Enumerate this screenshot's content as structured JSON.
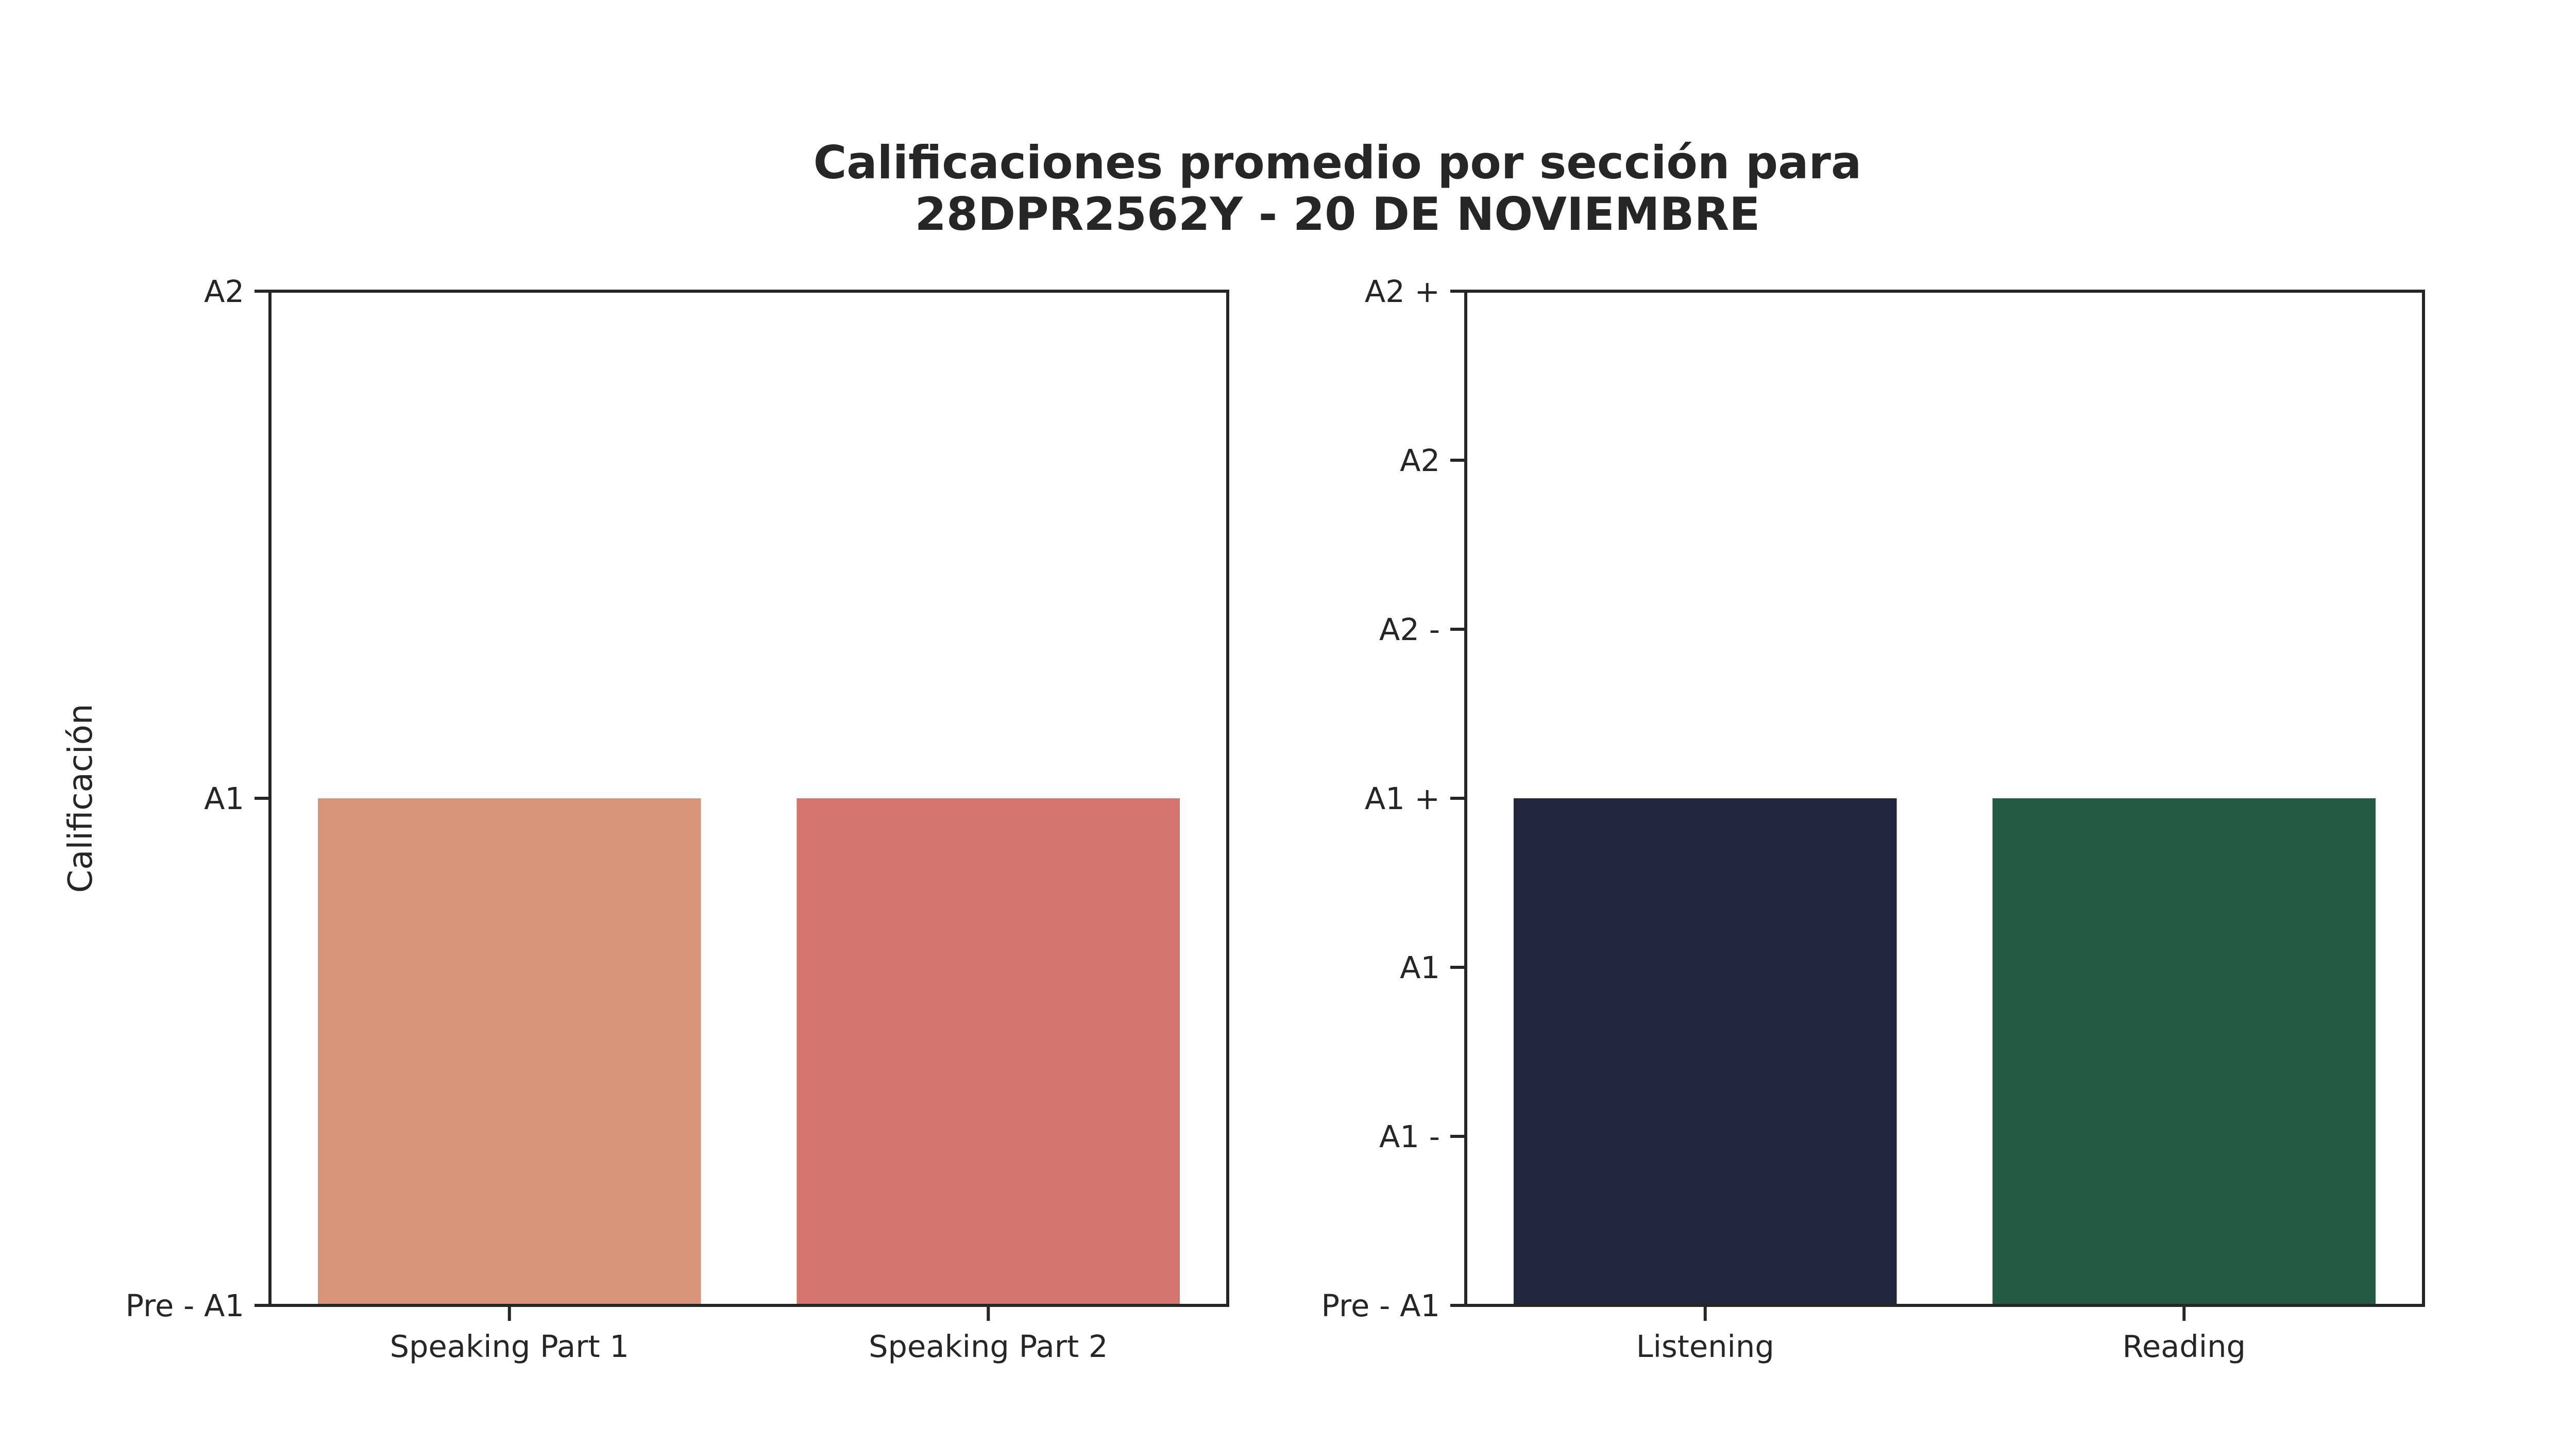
{
  "figure": {
    "title_lines": [
      "Calificaciones promedio por sección para",
      "28DPR2562Y - 20 DE NOVIEMBRE"
    ]
  },
  "chart_data": [
    {
      "type": "bar",
      "title": "",
      "xlabel": "",
      "ylabel": "Calificación",
      "categories": [
        "Speaking Part 1",
        "Speaking Part 2"
      ],
      "values": [
        1,
        1
      ],
      "colors": [
        "#D9957A",
        "#D3756D"
      ],
      "ylim": [
        0,
        2
      ],
      "yticks": [
        0,
        1,
        2
      ],
      "yticklabels": [
        "Pre - A1",
        "A1",
        "A2"
      ],
      "grid": false,
      "legend": "none"
    },
    {
      "type": "bar",
      "title": "",
      "xlabel": "",
      "ylabel": "",
      "categories": [
        "Listening",
        "Reading"
      ],
      "values": [
        3,
        3
      ],
      "colors": [
        "#21263D",
        "#245A42"
      ],
      "ylim": [
        0,
        6
      ],
      "yticks": [
        0,
        1,
        2,
        3,
        4,
        5,
        6
      ],
      "yticklabels": [
        "Pre - A1",
        "A1 -",
        "A1",
        "A1 +",
        "A2 -",
        "A2",
        "A2 +"
      ],
      "grid": false,
      "legend": "none"
    }
  ]
}
